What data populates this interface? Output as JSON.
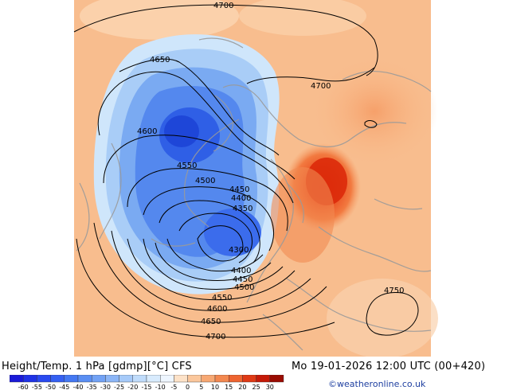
{
  "title_left": "Height/Temp. 1 hPa [gdmp][°C] CFS",
  "title_right": "Mo 19-01-2026 12:00 UTC (00+420)",
  "credit": "©weatheronline.co.uk",
  "contour_labels": [
    "4700",
    "4650",
    "4700",
    "4600",
    "4550",
    "4500",
    "4450",
    "4400",
    "4350",
    "4300",
    "4400",
    "4450",
    "4500",
    "4550",
    "4600",
    "4650",
    "4700",
    "4750"
  ],
  "legend": {
    "ticks": [
      "-60",
      "-55",
      "-50",
      "-45",
      "-40",
      "-35",
      "-30",
      "-25",
      "-20",
      "-15",
      "-10",
      "-5",
      "0",
      "5",
      "10",
      "15",
      "20",
      "25",
      "30"
    ],
    "colors": [
      "#1a1ad8",
      "#1f32e6",
      "#2a4af0",
      "#3560f2",
      "#4478f2",
      "#5a8ef3",
      "#72a2f5",
      "#8cb6f7",
      "#a6caf9",
      "#c0dcfb",
      "#d8ebfd",
      "#eef6ff",
      "#fde2c8",
      "#fbc79c",
      "#f7a873",
      "#f38850",
      "#ee6430",
      "#e03a15",
      "#c51a08",
      "#9a0c02"
    ]
  },
  "colors": {
    "ocean": "#f7b889",
    "land_border": "#9a9a9a",
    "cold_core": "#2a5be8",
    "warm_core": "#e0320f"
  }
}
